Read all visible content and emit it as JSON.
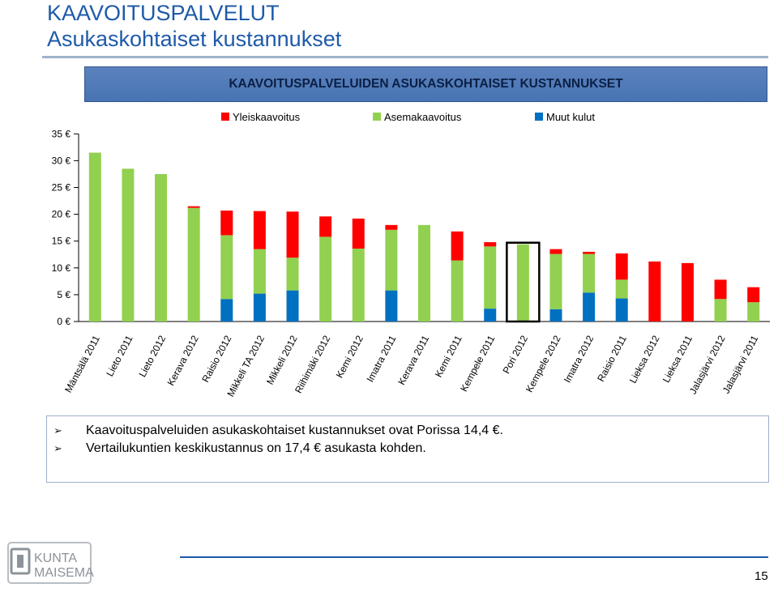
{
  "slide": {
    "title_line1": "KAAVOITUSPALVELUT",
    "title_line2": "Asukaskohtaiset kustannukset",
    "bullets": [
      "Kaavoituspalveluiden asukaskohtaiset kustannukset ovat Porissa 14,4 €.",
      "Vertailukuntien keskikustannus on 17,4 € asukasta kohden."
    ],
    "page_number": "15",
    "logo_text_line1": "KUNTA",
    "logo_text_line2": "MAISEMA"
  },
  "colors": {
    "title": "#1f5aa8",
    "yleiskaavoitus": "#ff0000",
    "asemakaavoitus": "#92d050",
    "muut_kulut": "#0070c0",
    "highlight_box": "#000000"
  },
  "chart_data": {
    "type": "bar",
    "stacked": true,
    "title": "KAAVOITUSPALVELUIDEN ASUKASKOHTAISET KUSTANNUKSET",
    "ylim": [
      0,
      35
    ],
    "yticks": [
      0,
      5,
      10,
      15,
      20,
      25,
      30,
      35
    ],
    "ytick_labels": [
      "0 €",
      "5 €",
      "10 €",
      "15 €",
      "20 €",
      "25 €",
      "30 €",
      "35 €"
    ],
    "legend_position": "top",
    "categories": [
      "Mäntsälä 2011",
      "Lieto 2011",
      "Lieto 2012",
      "Kerava 2012",
      "Raisio 2012",
      "Mikkeli TA 2012",
      "Mikkeli 2012",
      "Riihimäki 2012",
      "Kemi 2012",
      "Imatra 2011",
      "Kerava 2011",
      "Kemi 2011",
      "Kempele 2011",
      "Pori 2012",
      "Kempele 2012",
      "Imatra 2012",
      "Raisio 2011",
      "Lieksa 2012",
      "Lieksa 2011",
      "Jalasjärvi 2012",
      "Jalasjärvi 2011"
    ],
    "highlighted_category": "Pori 2012",
    "series": [
      {
        "name": "Muut kulut",
        "color": "#0070c0",
        "values": [
          0,
          0,
          0,
          0,
          4.2,
          5.2,
          5.8,
          0,
          0,
          5.8,
          0,
          0,
          2.4,
          0,
          2.3,
          5.4,
          4.3,
          0,
          0,
          0,
          0
        ]
      },
      {
        "name": "Asemakaavoitus",
        "color": "#92d050",
        "values": [
          31.5,
          28.5,
          27.5,
          21.2,
          11.9,
          8.3,
          6.1,
          15.8,
          13.6,
          11.3,
          18.0,
          11.4,
          11.6,
          14.4,
          10.3,
          7.2,
          3.5,
          0,
          0,
          4.2,
          3.6
        ]
      },
      {
        "name": "Yleiskaavoitus",
        "color": "#ff0000",
        "values": [
          0,
          0,
          0,
          0.3,
          4.6,
          7.1,
          8.6,
          3.8,
          5.6,
          0.9,
          0,
          5.4,
          0.8,
          0,
          0.9,
          0.4,
          4.9,
          11.2,
          10.9,
          3.6,
          2.8
        ]
      }
    ],
    "legend": [
      "Yleiskaavoitus",
      "Asemakaavoitus",
      "Muut kulut"
    ]
  }
}
